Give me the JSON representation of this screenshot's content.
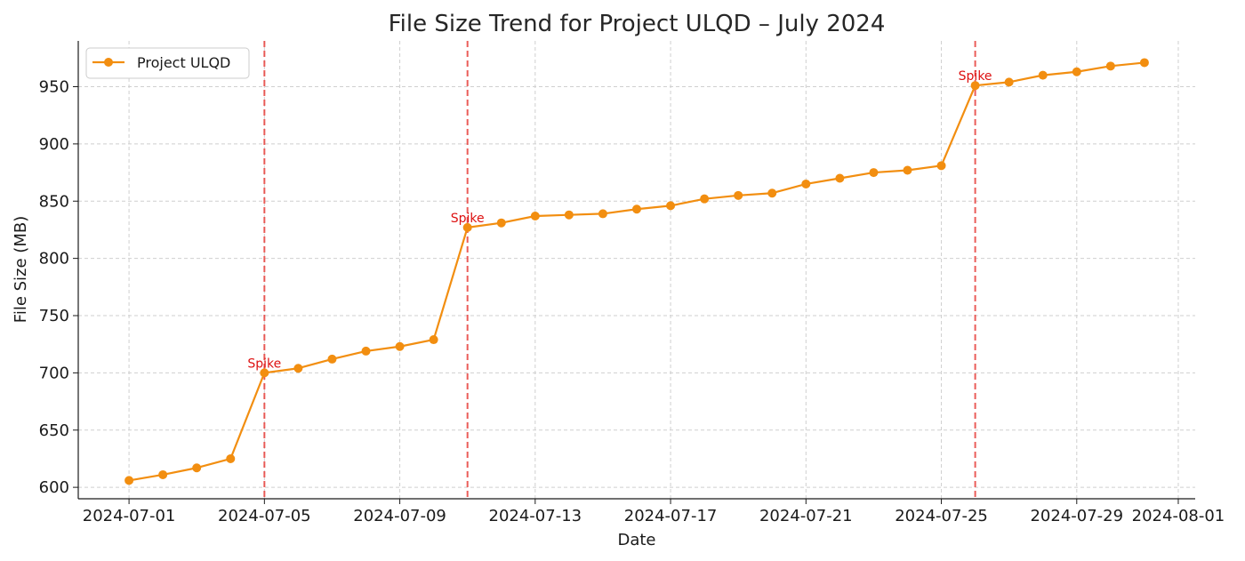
{
  "chart_data": {
    "type": "line",
    "title": "File Size Trend for Project ULQD – July 2024",
    "xlabel": "Date",
    "ylabel": "File Size (MB)",
    "x_tick_labels": [
      "2024-07-01",
      "2024-07-05",
      "2024-07-09",
      "2024-07-13",
      "2024-07-17",
      "2024-07-21",
      "2024-07-25",
      "2024-07-29",
      "2024-08-01"
    ],
    "x_ticks": [
      "2024-07-01",
      "2024-07-05",
      "2024-07-09",
      "2024-07-13",
      "2024-07-17",
      "2024-07-21",
      "2024-07-25",
      "2024-07-29",
      "2024-08-01"
    ],
    "y_ticks": [
      600,
      650,
      700,
      750,
      800,
      850,
      900,
      950
    ],
    "xlim": [
      "2024-06-29 12:00",
      "2024-08-01 12:00"
    ],
    "ylim": [
      590,
      990
    ],
    "grid": true,
    "legend_position": "top-left",
    "series": [
      {
        "name": "Project ULQD",
        "color": "#f28e10",
        "x": [
          "2024-07-01",
          "2024-07-02",
          "2024-07-03",
          "2024-07-04",
          "2024-07-05",
          "2024-07-06",
          "2024-07-07",
          "2024-07-08",
          "2024-07-09",
          "2024-07-10",
          "2024-07-11",
          "2024-07-12",
          "2024-07-13",
          "2024-07-14",
          "2024-07-15",
          "2024-07-16",
          "2024-07-17",
          "2024-07-18",
          "2024-07-19",
          "2024-07-20",
          "2024-07-21",
          "2024-07-22",
          "2024-07-23",
          "2024-07-24",
          "2024-07-25",
          "2024-07-26",
          "2024-07-27",
          "2024-07-28",
          "2024-07-29",
          "2024-07-30",
          "2024-07-31"
        ],
        "values": [
          606,
          611,
          617,
          625,
          700,
          704,
          712,
          719,
          723,
          729,
          827,
          831,
          837,
          838,
          839,
          843,
          846,
          852,
          855,
          857,
          865,
          870,
          875,
          877,
          881,
          951,
          954,
          960,
          963,
          968,
          971
        ]
      }
    ],
    "vertical_lines": {
      "color": "#e8413d",
      "style": "dashed",
      "x": [
        "2024-07-05",
        "2024-07-11",
        "2024-07-26"
      ]
    },
    "annotations": [
      {
        "text": "Spike",
        "x": "2024-07-05",
        "y": 700
      },
      {
        "text": "Spike",
        "x": "2024-07-11",
        "y": 827
      },
      {
        "text": "Spike",
        "x": "2024-07-26",
        "y": 951
      }
    ],
    "annotation_color": "#dd1111"
  }
}
